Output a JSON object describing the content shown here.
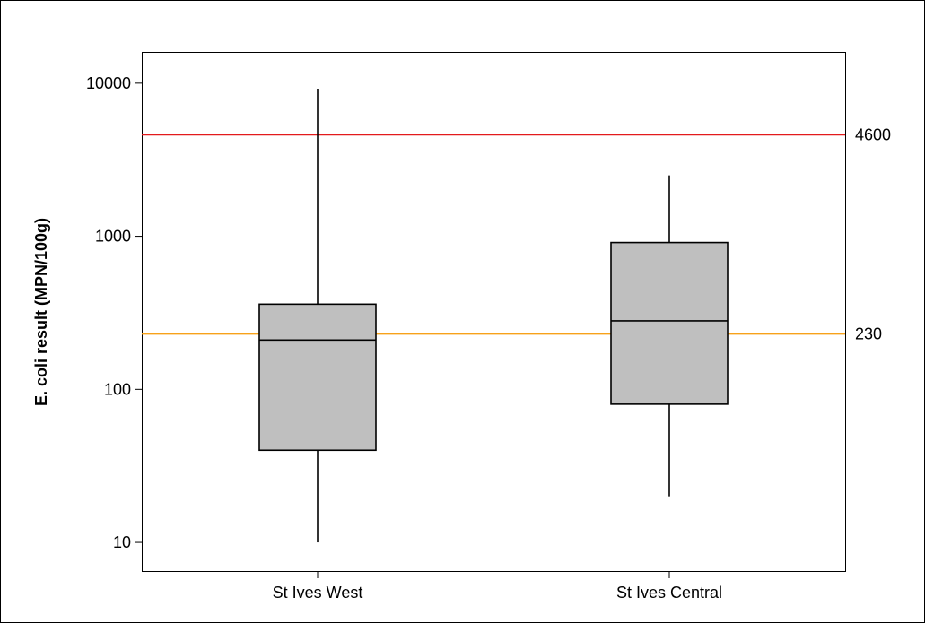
{
  "chart_data": {
    "type": "box",
    "title": "",
    "xlabel": "",
    "ylabel": "E. coli result (MPN/100g)",
    "yscale": "log",
    "ylim": [
      6.5,
      16000
    ],
    "yticks": [
      10,
      100,
      1000,
      10000
    ],
    "ytick_labels": [
      "10",
      "100",
      "1000",
      "10000"
    ],
    "categories": [
      "St Ives West",
      "St Ives Central"
    ],
    "boxes": [
      {
        "category": "St Ives West",
        "min": 10,
        "q1": 40,
        "median": 210,
        "q3": 360,
        "max": 9200
      },
      {
        "category": "St Ives Central",
        "min": 20,
        "q1": 80,
        "median": 280,
        "q3": 910,
        "max": 2500
      }
    ],
    "reference_lines": [
      {
        "value": 4600,
        "label": "4600",
        "color": "#e31a1c"
      },
      {
        "value": 230,
        "label": "230",
        "color": "#f7a21a"
      }
    ],
    "box_fill": "#bfbfbf",
    "grid": false,
    "legend": "none"
  }
}
